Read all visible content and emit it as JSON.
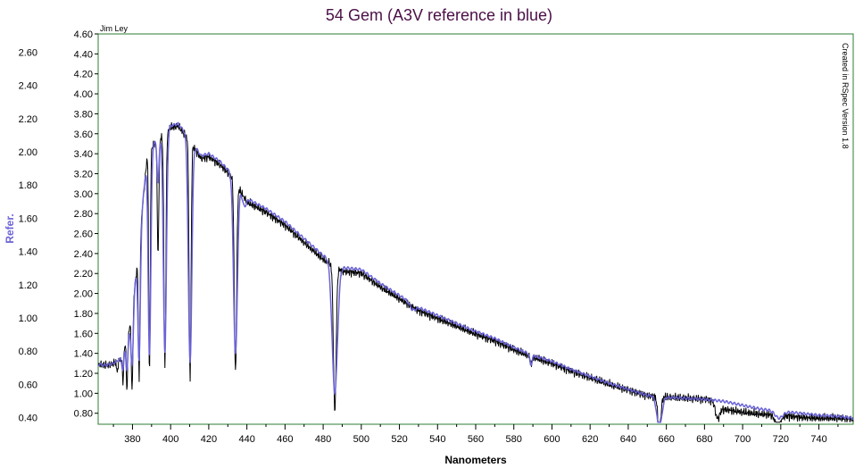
{
  "chart_data": {
    "type": "line",
    "title": "54 Gem (A3V reference in blue)",
    "xlabel": "Nanometers",
    "ylabel_right_axis_color": "#6b63d6",
    "ylabel": "Refer.",
    "author": "Jim Ley",
    "software_note": "Created in RSpec Version 1.8",
    "colors": {
      "reference": "#6b63d6",
      "target": "#000000",
      "frame": "#2e7d32",
      "title": "#4b0f47"
    },
    "xlim": [
      362,
      758
    ],
    "x_ticks": [
      380,
      400,
      420,
      440,
      460,
      480,
      500,
      520,
      540,
      560,
      580,
      600,
      620,
      640,
      660,
      680,
      700,
      720,
      740
    ],
    "inner_axis": {
      "ylim": [
        0.69,
        4.6
      ],
      "ticks": [
        "4.60",
        "4.40",
        "4.20",
        "4.00",
        "3.80",
        "3.60",
        "3.40",
        "3.20",
        "3.00",
        "2.80",
        "2.60",
        "2.40",
        "2.20",
        "2.00",
        "1.80",
        "1.60",
        "1.40",
        "1.20",
        "1.00",
        "0.80"
      ]
    },
    "outer_axis": {
      "label": "Refer.",
      "ylim": [
        0.36,
        2.71
      ],
      "ticks": [
        "2.60",
        "2.40",
        "2.20",
        "2.00",
        "1.80",
        "1.60",
        "1.40",
        "1.20",
        "1.00",
        "0.80",
        "0.60",
        "0.40"
      ]
    },
    "continuum": {
      "x": [
        362,
        366,
        370,
        374,
        378,
        382,
        388,
        394,
        400,
        404,
        410,
        416,
        420,
        426,
        432,
        440,
        450,
        460,
        470,
        480,
        490,
        500,
        510,
        520,
        530,
        540,
        550,
        560,
        570,
        580,
        590,
        600,
        610,
        620,
        630,
        640,
        650,
        660,
        670,
        680,
        690,
        700,
        710,
        720,
        730,
        740,
        750,
        758
      ],
      "values": [
        1.29,
        1.28,
        1.3,
        1.35,
        1.6,
        2.2,
        3.45,
        3.55,
        3.68,
        3.7,
        3.55,
        3.38,
        3.4,
        3.32,
        3.2,
        2.95,
        2.85,
        2.72,
        2.55,
        2.38,
        2.26,
        2.24,
        2.1,
        1.98,
        1.86,
        1.78,
        1.7,
        1.62,
        1.55,
        1.46,
        1.38,
        1.32,
        1.24,
        1.17,
        1.1,
        1.04,
        0.98,
        0.96,
        0.95,
        0.94,
        0.92,
        0.88,
        0.84,
        0.82,
        0.8,
        0.78,
        0.77,
        0.75
      ]
    },
    "absorption_lines_reference": [
      {
        "center": 656.3,
        "depth": 0.32,
        "width": 1.3
      },
      {
        "center": 486.1,
        "depth": 1.3,
        "width": 1.4
      },
      {
        "center": 434.0,
        "depth": 1.75,
        "width": 1.0
      },
      {
        "center": 410.2,
        "depth": 2.25,
        "width": 0.9
      },
      {
        "center": 397.0,
        "depth": 2.2,
        "width": 0.8
      },
      {
        "center": 388.9,
        "depth": 2.1,
        "width": 0.7
      },
      {
        "center": 383.5,
        "depth": 1.2,
        "width": 0.6
      },
      {
        "center": 379.8,
        "depth": 0.6,
        "width": 0.6
      },
      {
        "center": 377.1,
        "depth": 0.32,
        "width": 0.5
      },
      {
        "center": 375.0,
        "depth": 0.18,
        "width": 0.5
      },
      {
        "center": 393.4,
        "depth": 0.45,
        "width": 0.5
      },
      {
        "center": 438.5,
        "depth": 0.12,
        "width": 1.0
      },
      {
        "center": 527.0,
        "depth": 0.06,
        "width": 1.5
      },
      {
        "center": 589.0,
        "depth": 0.1,
        "width": 0.6
      },
      {
        "center": 719.0,
        "depth": 0.07,
        "width": 2.0
      }
    ],
    "absorption_lines_target": [
      {
        "center": 656.3,
        "depth": 0.34,
        "width": 0.8
      },
      {
        "center": 486.1,
        "depth": 1.45,
        "width": 0.7
      },
      {
        "center": 434.0,
        "depth": 1.9,
        "width": 0.6
      },
      {
        "center": 410.2,
        "depth": 2.4,
        "width": 0.5
      },
      {
        "center": 397.0,
        "depth": 2.35,
        "width": 0.5
      },
      {
        "center": 393.4,
        "depth": 1.15,
        "width": 0.4
      },
      {
        "center": 388.9,
        "depth": 2.25,
        "width": 0.4
      },
      {
        "center": 383.5,
        "depth": 1.35,
        "width": 0.4
      },
      {
        "center": 379.8,
        "depth": 0.85,
        "width": 0.4
      },
      {
        "center": 377.1,
        "depth": 0.55,
        "width": 0.3
      },
      {
        "center": 375.0,
        "depth": 0.3,
        "width": 0.3
      },
      {
        "center": 372.0,
        "depth": 0.12,
        "width": 0.3
      },
      {
        "center": 686.8,
        "depth": 0.15,
        "width": 1.2
      },
      {
        "center": 718.5,
        "depth": 0.12,
        "width": 1.5
      },
      {
        "center": 589.0,
        "depth": 0.09,
        "width": 0.4
      }
    ],
    "target_offsets": [
      {
        "x": 362,
        "dy": 0.0
      },
      {
        "x": 420,
        "dy": -0.03
      },
      {
        "x": 480,
        "dy": -0.04
      },
      {
        "x": 540,
        "dy": -0.03
      },
      {
        "x": 600,
        "dy": -0.02
      },
      {
        "x": 660,
        "dy": 0.0
      },
      {
        "x": 685,
        "dy": 0.0
      },
      {
        "x": 690,
        "dy": -0.08
      },
      {
        "x": 700,
        "dy": -0.07
      },
      {
        "x": 716,
        "dy": -0.04
      },
      {
        "x": 730,
        "dy": -0.04
      },
      {
        "x": 758,
        "dy": -0.01
      }
    ]
  }
}
